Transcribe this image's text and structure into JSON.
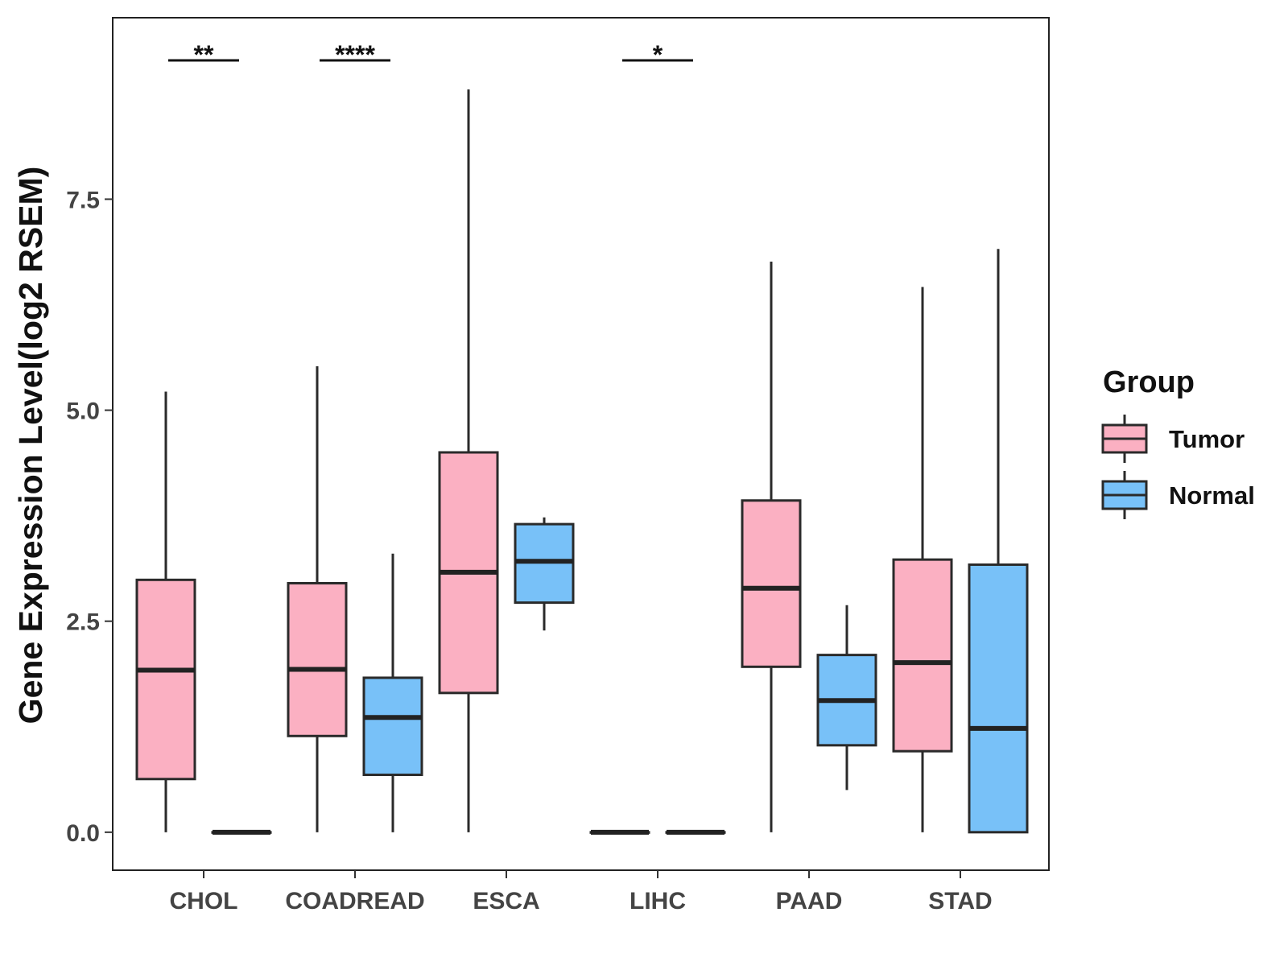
{
  "chart_data": {
    "type": "boxplot",
    "ylabel": "Gene Expression Level(log2 RSEM)",
    "xlabel": "",
    "ylim": [
      -0.45,
      9.65
    ],
    "yticks": [
      {
        "value": 0.0,
        "label": "0.0"
      },
      {
        "value": 2.5,
        "label": "2.5"
      },
      {
        "value": 5.0,
        "label": "5.0"
      },
      {
        "value": 7.5,
        "label": "7.5"
      }
    ],
    "categories": [
      "CHOL",
      "COADREAD",
      "ESCA",
      "LIHC",
      "PAAD",
      "STAD"
    ],
    "legend": {
      "title": "Group",
      "position": "right",
      "entries": [
        {
          "name": "Tumor",
          "color": "#FBB0C2"
        },
        {
          "name": "Normal",
          "color": "#78C1F8"
        }
      ]
    },
    "series": [
      {
        "name": "Tumor",
        "color": "#FBB0C2",
        "boxes": [
          {
            "category": "CHOL",
            "min": 0.0,
            "q1": 0.63,
            "median": 1.92,
            "q3": 2.99,
            "max": 5.22
          },
          {
            "category": "COADREAD",
            "min": 0.0,
            "q1": 1.14,
            "median": 1.93,
            "q3": 2.95,
            "max": 5.52
          },
          {
            "category": "ESCA",
            "min": 0.0,
            "q1": 1.65,
            "median": 3.08,
            "q3": 4.5,
            "max": 8.8
          },
          {
            "category": "LIHC",
            "min": 0.0,
            "q1": 0.0,
            "median": 0.0,
            "q3": 0.0,
            "max": 0.0
          },
          {
            "category": "PAAD",
            "min": 0.0,
            "q1": 1.96,
            "median": 2.89,
            "q3": 3.93,
            "max": 6.76
          },
          {
            "category": "STAD",
            "min": 0.0,
            "q1": 0.96,
            "median": 2.01,
            "q3": 3.23,
            "max": 6.46
          }
        ]
      },
      {
        "name": "Normal",
        "color": "#78C1F8",
        "boxes": [
          {
            "category": "CHOL",
            "min": 0.0,
            "q1": 0.0,
            "median": 0.0,
            "q3": 0.0,
            "max": 0.0
          },
          {
            "category": "COADREAD",
            "min": 0.0,
            "q1": 0.68,
            "median": 1.36,
            "q3": 1.83,
            "max": 3.3
          },
          {
            "category": "ESCA",
            "min": 2.39,
            "q1": 2.72,
            "median": 3.21,
            "q3": 3.65,
            "max": 3.73
          },
          {
            "category": "LIHC",
            "min": 0.0,
            "q1": 0.0,
            "median": 0.0,
            "q3": 0.0,
            "max": 0.0
          },
          {
            "category": "PAAD",
            "min": 0.5,
            "q1": 1.03,
            "median": 1.56,
            "q3": 2.1,
            "max": 2.69
          },
          {
            "category": "STAD",
            "min": 0.0,
            "q1": 0.0,
            "median": 1.23,
            "q3": 3.17,
            "max": 6.91
          }
        ]
      }
    ],
    "significance": [
      {
        "category": "CHOL",
        "label": "**"
      },
      {
        "category": "COADREAD",
        "label": "****"
      },
      {
        "category": "LIHC",
        "label": "*"
      }
    ],
    "grid": false
  }
}
